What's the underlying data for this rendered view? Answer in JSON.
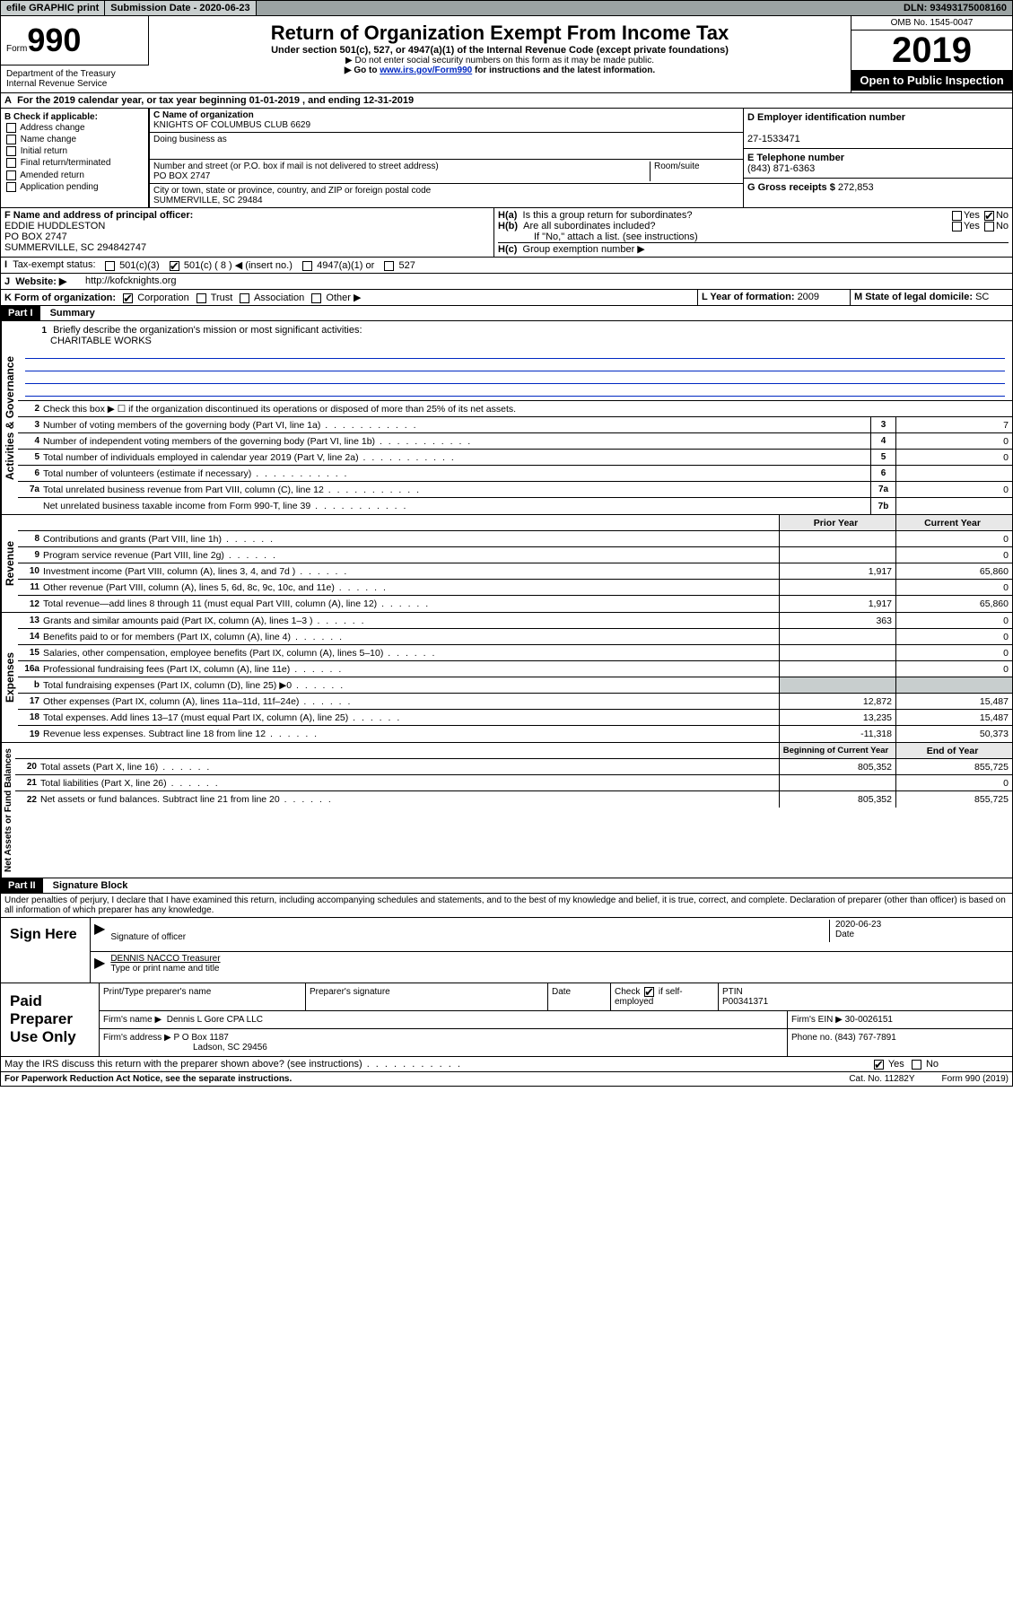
{
  "topbar": {
    "efile": "efile GRAPHIC print",
    "subdate_label": "Submission Date - ",
    "subdate": "2020-06-23",
    "dln_label": "DLN: ",
    "dln": "93493175008160"
  },
  "header": {
    "form_label_pre": "Form",
    "form_num": "990",
    "dept": "Department of the Treasury\nInternal Revenue Service",
    "title": "Return of Organization Exempt From Income Tax",
    "subtitle": "Under section 501(c), 527, or 4947(a)(1) of the Internal Revenue Code (except private foundations)",
    "note1": "▶ Do not enter social security numbers on this form as it may be made public.",
    "note2_pre": "▶ Go to ",
    "note2_link": "www.irs.gov/Form990",
    "note2_post": " for instructions and the latest information.",
    "omb": "OMB No. 1545-0047",
    "year": "2019",
    "otp": "Open to Public Inspection"
  },
  "periodA": {
    "text_pre": "For the 2019 calendar year, or tax year beginning ",
    "begin": "01-01-2019",
    "mid": " , and ending ",
    "end": "12-31-2019"
  },
  "boxB": {
    "label": "B Check if applicable:",
    "items": [
      "Address change",
      "Name change",
      "Initial return",
      "Final return/terminated",
      "Amended return",
      "Application pending"
    ]
  },
  "boxC": {
    "name_label": "C Name of organization",
    "name": "KNIGHTS OF COLUMBUS CLUB 6629",
    "dba_label": "Doing business as",
    "addr_label": "Number and street (or P.O. box if mail is not delivered to street address)",
    "room_label": "Room/suite",
    "addr": "PO BOX 2747",
    "city_label": "City or town, state or province, country, and ZIP or foreign postal code",
    "city": "SUMMERVILLE, SC  29484"
  },
  "boxD": {
    "label": "D Employer identification number",
    "val": "27-1533471"
  },
  "boxE": {
    "label": "E Telephone number",
    "val": "(843) 871-6363"
  },
  "boxG": {
    "label": "G Gross receipts $ ",
    "val": "272,853"
  },
  "boxF": {
    "label": "F  Name and address of principal officer:",
    "name": "EDDIE HUDDLESTON",
    "addr1": "PO BOX 2747",
    "addr2": "SUMMERVILLE, SC  294842747"
  },
  "boxH": {
    "a": "Is this a group return for subordinates?",
    "b": "Are all subordinates included?",
    "bnote": "If \"No,\" attach a list. (see instructions)",
    "c": "Group exemption number ▶"
  },
  "taxexempt": {
    "label": "Tax-exempt status:",
    "opt1": "501(c)(3)",
    "opt2": "501(c) ( 8 ) ◀ (insert no.)",
    "opt3": "4947(a)(1) or",
    "opt4": "527"
  },
  "boxJ": {
    "label": "Website: ▶",
    "val": "http://kofcknights.org"
  },
  "boxK": {
    "label": "K Form of organization:",
    "opts": [
      "Corporation",
      "Trust",
      "Association",
      "Other ▶"
    ]
  },
  "boxL": {
    "label": "L Year of formation: ",
    "val": "2009"
  },
  "boxM": {
    "label": "M State of legal domicile: ",
    "val": "SC"
  },
  "partI": {
    "num": "Part I",
    "title": "Summary",
    "q1": "Briefly describe the organization's mission or most significant activities:",
    "q1val": "CHARITABLE WORKS",
    "q2": "Check this box ▶ ☐  if the organization discontinued its operations or disposed of more than 25% of its net assets.",
    "lines": [
      {
        "n": "3",
        "t": "Number of voting members of the governing body (Part VI, line 1a)",
        "box": "3",
        "v": "7"
      },
      {
        "n": "4",
        "t": "Number of independent voting members of the governing body (Part VI, line 1b)",
        "box": "4",
        "v": "0"
      },
      {
        "n": "5",
        "t": "Total number of individuals employed in calendar year 2019 (Part V, line 2a)",
        "box": "5",
        "v": "0"
      },
      {
        "n": "6",
        "t": "Total number of volunteers (estimate if necessary)",
        "box": "6",
        "v": ""
      },
      {
        "n": "7a",
        "t": "Total unrelated business revenue from Part VIII, column (C), line 12",
        "box": "7a",
        "v": "0"
      },
      {
        "n": "",
        "t": "Net unrelated business taxable income from Form 990-T, line 39",
        "box": "7b",
        "v": ""
      }
    ],
    "col_hdr_prior": "Prior Year",
    "col_hdr_curr": "Current Year",
    "rev": [
      {
        "n": "8",
        "t": "Contributions and grants (Part VIII, line 1h)",
        "p": "",
        "c": "0"
      },
      {
        "n": "9",
        "t": "Program service revenue (Part VIII, line 2g)",
        "p": "",
        "c": "0"
      },
      {
        "n": "10",
        "t": "Investment income (Part VIII, column (A), lines 3, 4, and 7d )",
        "p": "1,917",
        "c": "65,860"
      },
      {
        "n": "11",
        "t": "Other revenue (Part VIII, column (A), lines 5, 6d, 8c, 9c, 10c, and 11e)",
        "p": "",
        "c": "0"
      },
      {
        "n": "12",
        "t": "Total revenue—add lines 8 through 11 (must equal Part VIII, column (A), line 12)",
        "p": "1,917",
        "c": "65,860"
      }
    ],
    "exp": [
      {
        "n": "13",
        "t": "Grants and similar amounts paid (Part IX, column (A), lines 1–3 )",
        "p": "363",
        "c": "0"
      },
      {
        "n": "14",
        "t": "Benefits paid to or for members (Part IX, column (A), line 4)",
        "p": "",
        "c": "0"
      },
      {
        "n": "15",
        "t": "Salaries, other compensation, employee benefits (Part IX, column (A), lines 5–10)",
        "p": "",
        "c": "0"
      },
      {
        "n": "16a",
        "t": "Professional fundraising fees (Part IX, column (A), line 11e)",
        "p": "",
        "c": "0"
      },
      {
        "n": "b",
        "t": "Total fundraising expenses (Part IX, column (D), line 25) ▶0",
        "p": "shade",
        "c": "shade"
      },
      {
        "n": "17",
        "t": "Other expenses (Part IX, column (A), lines 11a–11d, 11f–24e)",
        "p": "12,872",
        "c": "15,487"
      },
      {
        "n": "18",
        "t": "Total expenses. Add lines 13–17 (must equal Part IX, column (A), line 25)",
        "p": "13,235",
        "c": "15,487"
      },
      {
        "n": "19",
        "t": "Revenue less expenses. Subtract line 18 from line 12",
        "p": "-11,318",
        "c": "50,373"
      }
    ],
    "col_hdr_bcy": "Beginning of Current Year",
    "col_hdr_eoy": "End of Year",
    "net": [
      {
        "n": "20",
        "t": "Total assets (Part X, line 16)",
        "p": "805,352",
        "c": "855,725"
      },
      {
        "n": "21",
        "t": "Total liabilities (Part X, line 26)",
        "p": "",
        "c": "0"
      },
      {
        "n": "22",
        "t": "Net assets or fund balances. Subtract line 21 from line 20",
        "p": "805,352",
        "c": "855,725"
      }
    ],
    "vert_gov": "Activities & Governance",
    "vert_rev": "Revenue",
    "vert_exp": "Expenses",
    "vert_net": "Net Assets or Fund Balances"
  },
  "partII": {
    "num": "Part II",
    "title": "Signature Block",
    "decl": "Under penalties of perjury, I declare that I have examined this return, including accompanying schedules and statements, and to the best of my knowledge and belief, it is true, correct, and complete. Declaration of preparer (other than officer) is based on all information of which preparer has any knowledge."
  },
  "sign": {
    "label": "Sign Here",
    "sig_label": "Signature of officer",
    "date": "2020-06-23",
    "date_label": "Date",
    "name": "DENNIS NACCO Treasurer",
    "name_label": "Type or print name and title"
  },
  "prep": {
    "label": "Paid Preparer Use Only",
    "col1": "Print/Type preparer's name",
    "col2": "Preparer's signature",
    "col3": "Date",
    "col4_pre": "Check",
    "col4_post": "if self-employed",
    "col5_label": "PTIN",
    "col5": "P00341371",
    "firm_label": "Firm's name   ▶",
    "firm": "Dennis L Gore CPA LLC",
    "ein_label": "Firm's EIN ▶",
    "ein": "30-0026151",
    "addr_label": "Firm's address ▶",
    "addr1": "P O Box 1187",
    "addr2": "Ladson, SC  29456",
    "phone_label": "Phone no. ",
    "phone": "(843) 767-7891"
  },
  "discuss": {
    "text": "May the IRS discuss this return with the preparer shown above? (see instructions)"
  },
  "footer": {
    "pra": "For Paperwork Reduction Act Notice, see the separate instructions.",
    "cat": "Cat. No. 11282Y",
    "formno": "Form 990 (2019)"
  }
}
